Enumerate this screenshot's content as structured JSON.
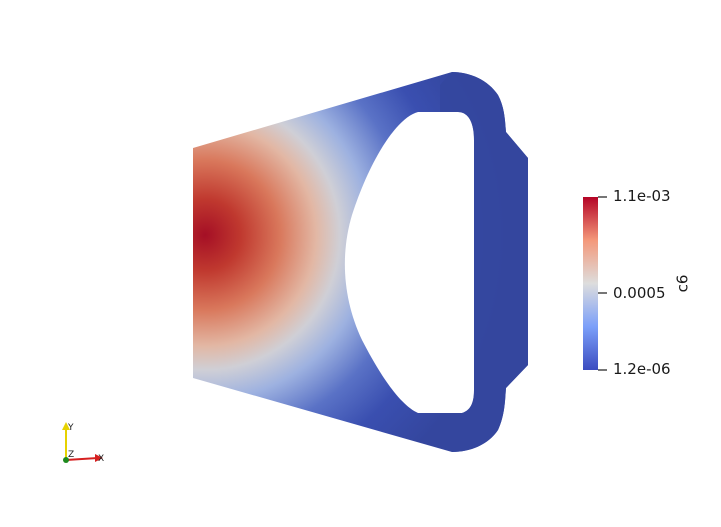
{
  "colorbar": {
    "title": "c6",
    "max_label": "1.1e-03",
    "mid_label": "0.0005",
    "min_label": "1.2e-06",
    "colormap_name": "Cool to Warm",
    "colors": {
      "high": "#b40426",
      "mid": "#dddddd",
      "low": "#3b4cc0"
    }
  },
  "orientation_axes": {
    "y_label": "Y",
    "z_label": "Z",
    "x_label": "X",
    "colors": {
      "x": "#d62020",
      "y": "#e6d200",
      "z": "#1e8a1e"
    }
  }
}
